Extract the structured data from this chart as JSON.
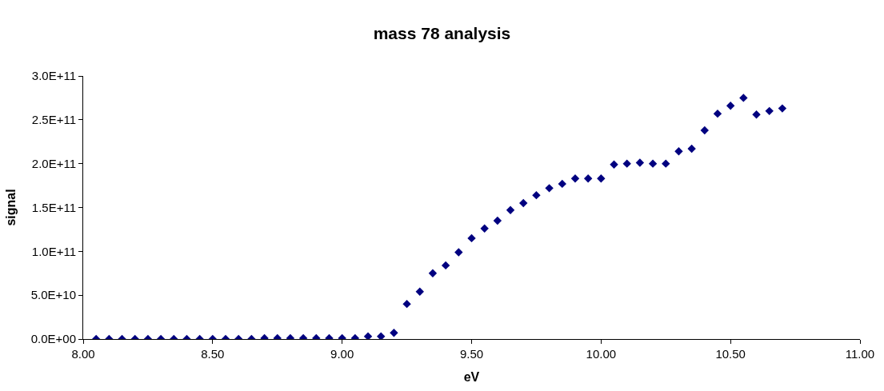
{
  "chart_data": {
    "type": "scatter",
    "title": "mass 78 analysis",
    "xlabel": "eV",
    "ylabel": "signal",
    "x": [
      8.05,
      8.1,
      8.15,
      8.2,
      8.25,
      8.3,
      8.35,
      8.4,
      8.45,
      8.5,
      8.55,
      8.6,
      8.65,
      8.7,
      8.75,
      8.8,
      8.85,
      8.9,
      8.95,
      9.0,
      9.05,
      9.1,
      9.15,
      9.2,
      9.25,
      9.3,
      9.35,
      9.4,
      9.45,
      9.5,
      9.55,
      9.6,
      9.65,
      9.7,
      9.75,
      9.8,
      9.85,
      9.9,
      9.95,
      10.0,
      10.05,
      10.1,
      10.15,
      10.2,
      10.25,
      10.3,
      10.35,
      10.4,
      10.45,
      10.5,
      10.55,
      10.6,
      10.65,
      10.7
    ],
    "series": [
      {
        "color": "#000080",
        "values": [
          0,
          0,
          0,
          0,
          0,
          0,
          0,
          0,
          0,
          0,
          0,
          0,
          0,
          1000000000.0,
          1000000000.0,
          1000000000.0,
          1000000000.0,
          1000000000.0,
          1000000000.0,
          1000000000.0,
          1000000000.0,
          3000000000.0,
          3000000000.0,
          7000000000.0,
          40000000000.0,
          54000000000.0,
          75000000000.0,
          84000000000.0,
          99000000000.0,
          115000000000.0,
          126000000000.0,
          135000000000.0,
          147000000000.0,
          155000000000.0,
          164000000000.0,
          172000000000.0,
          177000000000.0,
          183000000000.0,
          183000000000.0,
          183000000000.0,
          199000000000.0,
          200000000000.0,
          201000000000.0,
          200000000000.0,
          200000000000.0,
          214000000000.0,
          217000000000.0,
          238000000000.0,
          257000000000.0,
          266000000000.0,
          275000000000.0,
          256000000000.0,
          260000000000.0,
          263000000000.0
        ]
      }
    ],
    "xlim": [
      8.0,
      11.0
    ],
    "ylim": [
      0,
      300000000000.0
    ],
    "xticks": [
      {
        "value": 8.0,
        "label": "8.00"
      },
      {
        "value": 8.5,
        "label": "8.50"
      },
      {
        "value": 9.0,
        "label": "9.00"
      },
      {
        "value": 9.5,
        "label": "9.50"
      },
      {
        "value": 10.0,
        "label": "10.00"
      },
      {
        "value": 10.5,
        "label": "10.50"
      },
      {
        "value": 11.0,
        "label": "11.00"
      }
    ],
    "yticks": [
      {
        "value": 0,
        "label": "0.0E+00"
      },
      {
        "value": 50000000000.0,
        "label": "5.0E+10"
      },
      {
        "value": 100000000000.0,
        "label": "1.0E+11"
      },
      {
        "value": 150000000000.0,
        "label": "1.5E+11"
      },
      {
        "value": 200000000000.0,
        "label": "2.0E+11"
      },
      {
        "value": 250000000000.0,
        "label": "2.5E+11"
      },
      {
        "value": 300000000000.0,
        "label": "3.0E+11"
      }
    ],
    "marker": "diamond"
  }
}
